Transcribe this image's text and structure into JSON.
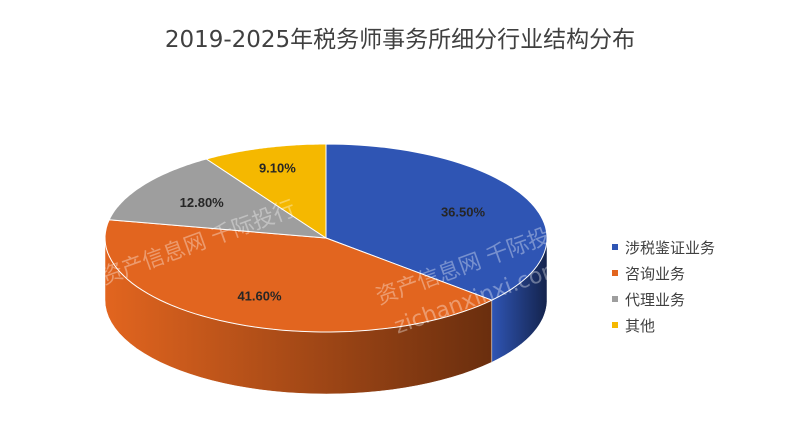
{
  "chart_data": {
    "type": "pie",
    "title": "2019-2025年税务师事务所细分行业结构分布",
    "categories": [
      "涉税鉴证业务",
      "咨询业务",
      "代理业务",
      "其他"
    ],
    "values": [
      36.5,
      41.6,
      12.8,
      9.1
    ],
    "labels": [
      "36.50%",
      "41.60%",
      "12.80%",
      "9.10%"
    ],
    "colors": [
      "#2F55B4",
      "#E2651F",
      "#9E9E9E",
      "#F5B800"
    ],
    "side_colors": [
      "#14234C",
      "#6A2E0E",
      "#555555",
      "#8A6800"
    ],
    "legend_position": "right",
    "style": "3d"
  },
  "watermark": [
    "资产信息网 千际投行",
    "zichanxinxi.com"
  ]
}
